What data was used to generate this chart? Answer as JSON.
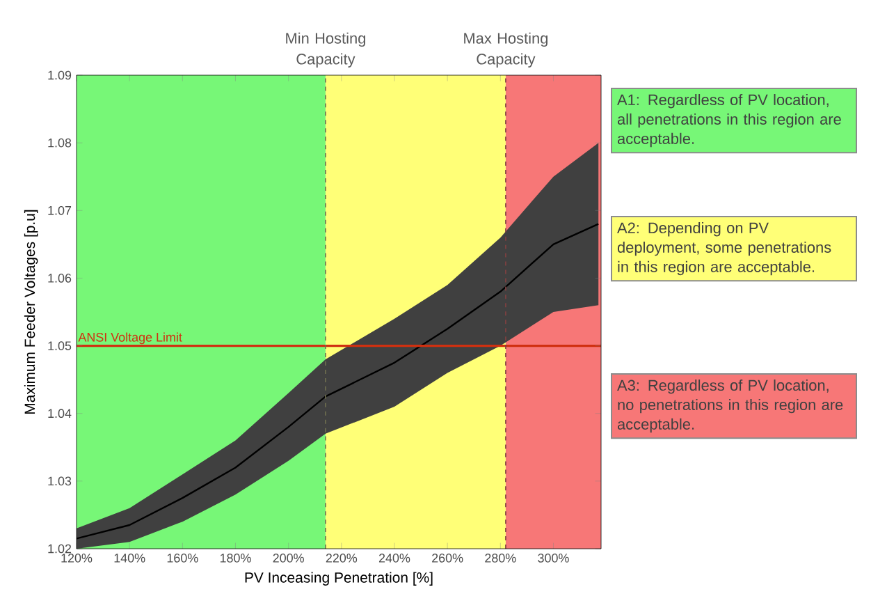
{
  "chart_data": {
    "type": "line",
    "xlabel": "PV Inceasing Penetration [%]",
    "ylabel": "Maximum Feeder Voltages [p.u]",
    "x": [
      120,
      140,
      160,
      180,
      200,
      214,
      240,
      260,
      280,
      300,
      317
    ],
    "series": [
      {
        "color": "#000000",
        "values": [
          1.0215,
          1.0235,
          1.0275,
          1.032,
          1.038,
          1.0425,
          1.0475,
          1.0525,
          1.058,
          1.065,
          1.068
        ],
        "lower": [
          1.02,
          1.021,
          1.024,
          1.028,
          1.033,
          1.037,
          1.041,
          1.046,
          1.05,
          1.055,
          1.056
        ],
        "upper": [
          1.023,
          1.026,
          1.031,
          1.036,
          1.043,
          1.048,
          1.054,
          1.059,
          1.066,
          1.075,
          1.08
        ]
      }
    ],
    "xlim": [
      120,
      318
    ],
    "ylim": [
      1.02,
      1.09
    ],
    "xticks": [
      {
        "value": 120,
        "label": "120%"
      },
      {
        "value": 140,
        "label": "140%"
      },
      {
        "value": 160,
        "label": "160%"
      },
      {
        "value": 180,
        "label": "180%"
      },
      {
        "value": 200,
        "label": "200%"
      },
      {
        "value": 220,
        "label": "220%"
      },
      {
        "value": 240,
        "label": "240%"
      },
      {
        "value": 260,
        "label": "260%"
      },
      {
        "value": 280,
        "label": "280%"
      },
      {
        "value": 300,
        "label": "300%"
      }
    ],
    "yticks": [
      1.02,
      1.03,
      1.04,
      1.05,
      1.06,
      1.07,
      1.08,
      1.09
    ],
    "bands": [
      {
        "axis": "x",
        "from": 120,
        "to": 214,
        "color": "#77f777"
      },
      {
        "axis": "x",
        "from": 214,
        "to": 282,
        "color": "#ffff77"
      },
      {
        "axis": "x",
        "from": 282,
        "to": 318,
        "color": "#f77777"
      }
    ],
    "ref_lines": [
      {
        "axis": "y",
        "value": 1.05,
        "label": "ANSI Voltage Limit",
        "color": "#d03010",
        "line_style": "solid"
      },
      {
        "axis": "x",
        "value": 214,
        "label": "Min Hosting Capacity",
        "color": "#707050",
        "line_style": "dashed"
      },
      {
        "axis": "x",
        "value": 282,
        "label": "Max Hosting Capacity",
        "color": "#804040",
        "line_style": "dashed"
      }
    ],
    "annotations": [
      "A1: Regardless of PV location, all penetrations in this region are acceptable.",
      "A2: Depending on PV deployment, some penetrations in this region are acceptable.",
      "A3: Regardless of PV location, no penetrations in this region are acceptable."
    ],
    "grid": false,
    "marker": "none",
    "line_style": "solid"
  }
}
